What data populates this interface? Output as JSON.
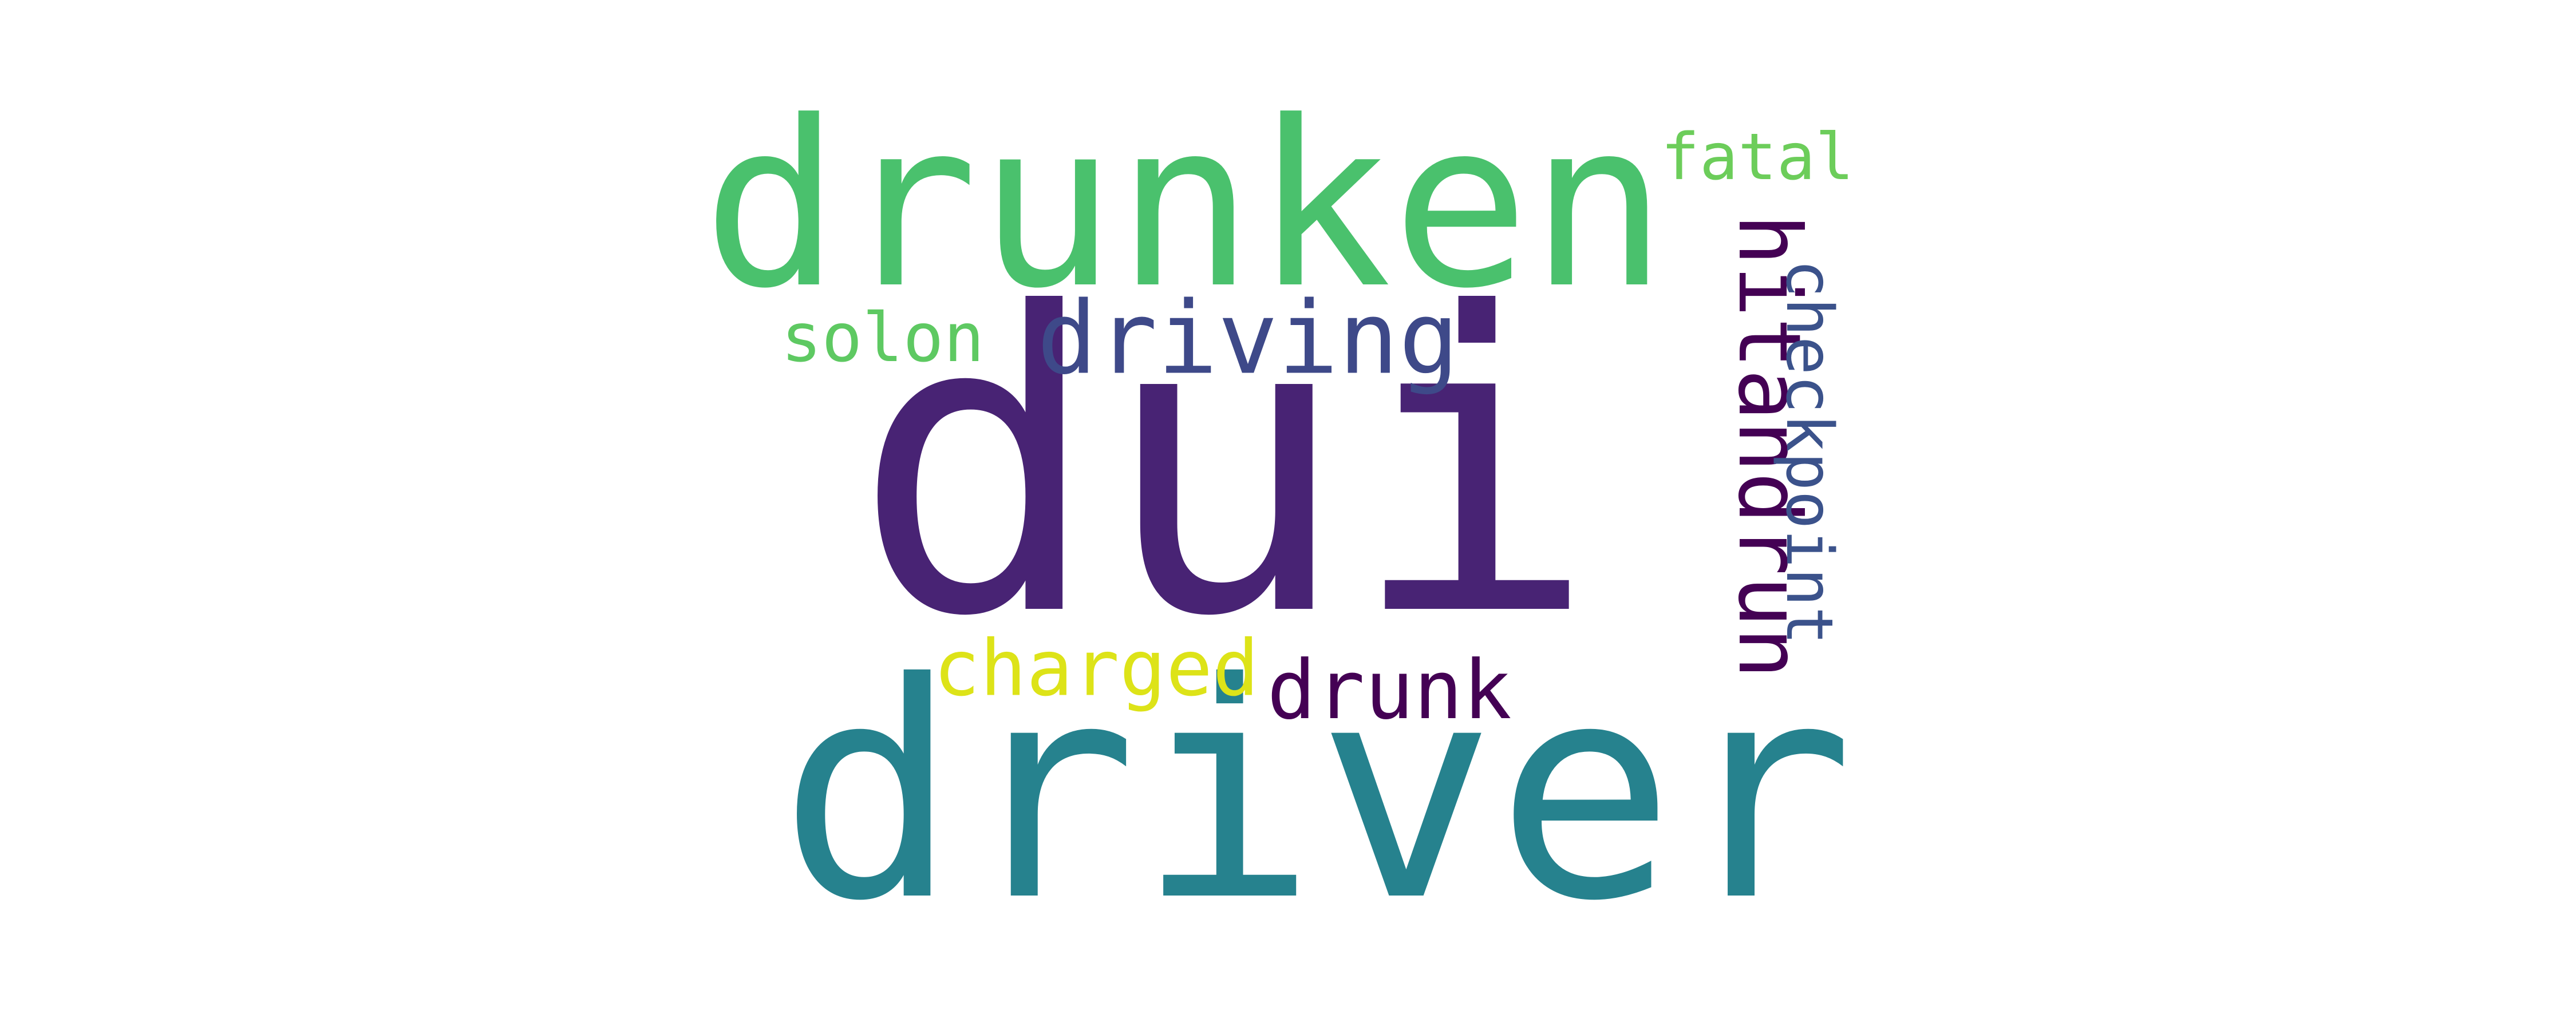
{
  "words": [
    {
      "text": "dui",
      "color": "#482374"
    },
    {
      "text": "driver",
      "color": "#26828e"
    },
    {
      "text": "drunken",
      "color": "#4ac16d"
    },
    {
      "text": "hitandrun",
      "color": "#440154"
    },
    {
      "text": "driving",
      "color": "#3e4989"
    },
    {
      "text": "checkpoint",
      "color": "#3b528b"
    },
    {
      "text": "drunk",
      "color": "#440154"
    },
    {
      "text": "charged",
      "color": "#dde318"
    },
    {
      "text": "solon",
      "color": "#5ec962"
    },
    {
      "text": "fatal",
      "color": "#6ccd5a"
    }
  ]
}
